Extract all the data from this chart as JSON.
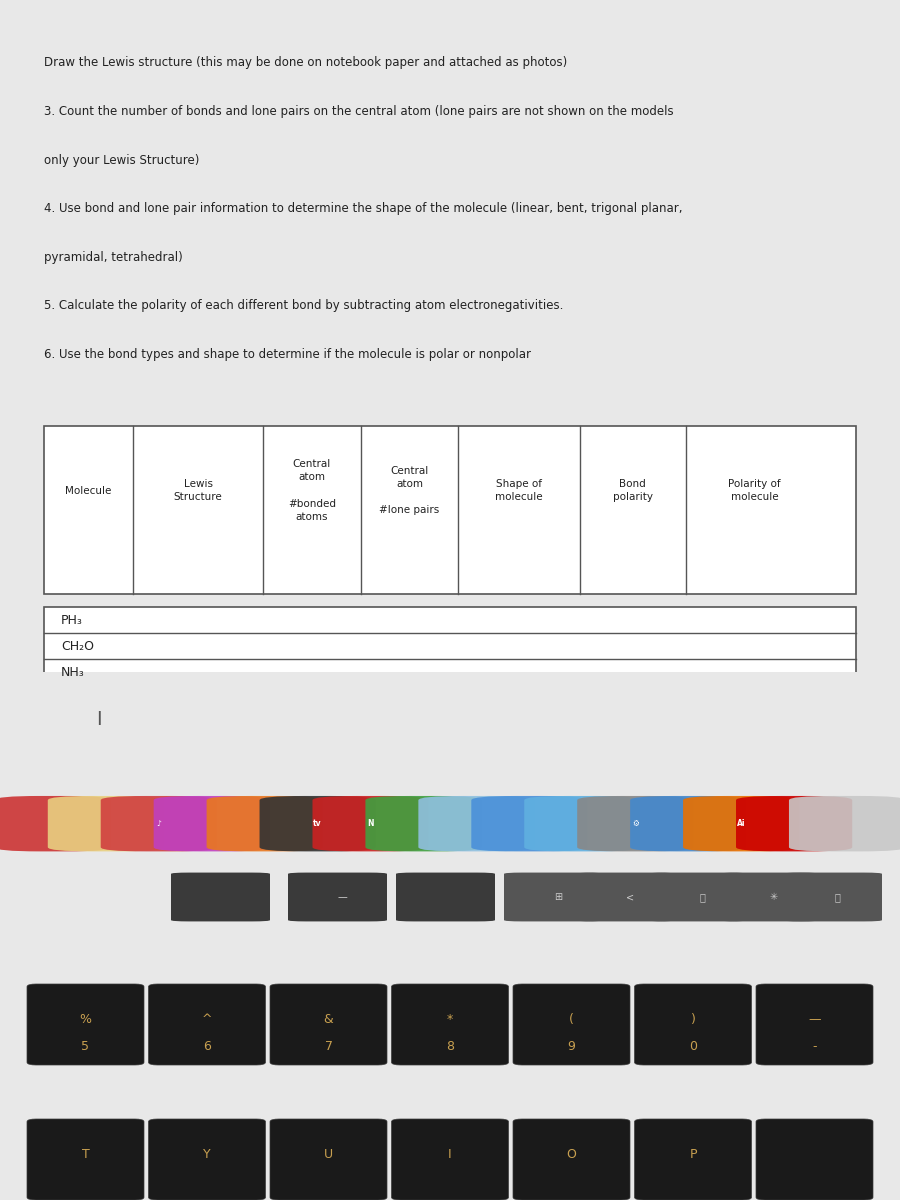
{
  "instructions": [
    "Draw the Lewis structure (this may be done on notebook paper and attached as photos)",
    "3. Count the number of bonds and lone pairs on the central atom (lone pairs are not shown on the models",
    "only your Lewis Structure)",
    "4. Use bond and lone pair information to determine the shape of the molecule (linear, bent, trigonal planar,",
    "pyramidal, tetrahedral)",
    "5. Calculate the polarity of each different bond by subtracting atom electronegativities.",
    "6. Use the bond types and shape to determine if the molecule is polar or nonpolar"
  ],
  "header_row": [
    "Molecule",
    "Lewis\nStructure",
    "Central\natom\n\n#bonded\natoms",
    "Central\natom\n\n#lone pairs",
    "Shape of\nmolecule",
    "Bond\npolarity",
    "Polarity of\nmolecule"
  ],
  "molecules": [
    "PH₃",
    "CH₂O",
    "NH₃"
  ],
  "bg_color": "#e8e8e8",
  "paper_color": "#f0f0f0",
  "table_bg": "#f5f5f5",
  "border_color": "#555555",
  "text_color": "#222222",
  "dock_bg": "#4a4a4a",
  "keyboard_bg": "#2a2a2a",
  "keyboard_key_color": "#1a1a1a",
  "keyboard_text_color": "#c8a050"
}
